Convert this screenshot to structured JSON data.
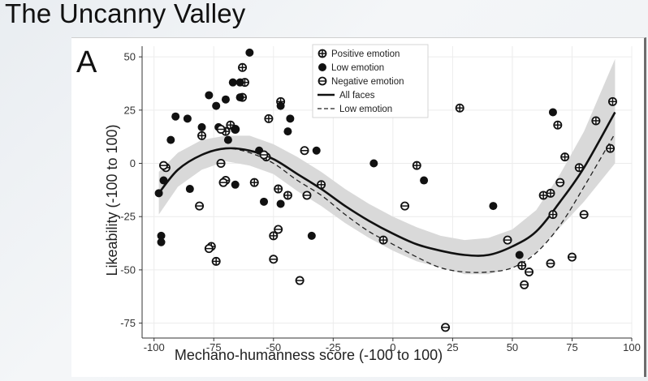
{
  "slide": {
    "title": "The Uncanny Valley"
  },
  "chart_data": {
    "type": "scatter",
    "panel_label": "A",
    "xlabel": "Mechano-humanness score (-100 to 100)",
    "ylabel": "Likeability (-100 to 100)",
    "xlim": [
      -105,
      100
    ],
    "ylim": [
      -82,
      55
    ],
    "x_ticks": [
      -100,
      -75,
      -50,
      -25,
      0,
      25,
      50,
      75,
      100
    ],
    "y_ticks": [
      -75,
      -50,
      -25,
      0,
      25,
      50
    ],
    "grid": true,
    "legend_position": "top-center",
    "legend": [
      {
        "label": "Positive emotion",
        "marker": "positive"
      },
      {
        "label": "Low emotion",
        "marker": "low"
      },
      {
        "label": "Negative emotion",
        "marker": "negative"
      },
      {
        "label": "All faces",
        "line": "solid"
      },
      {
        "label": "Low emotion",
        "line": "dashed"
      }
    ],
    "series": [
      {
        "marker": "positive",
        "points": [
          [
            -80,
            13
          ],
          [
            -70,
            15
          ],
          [
            -68,
            18
          ],
          [
            -66,
            16
          ],
          [
            -63,
            45
          ],
          [
            -62,
            38
          ],
          [
            -63,
            31
          ],
          [
            -58,
            -9
          ],
          [
            -52,
            21
          ],
          [
            -50,
            -34
          ],
          [
            -47,
            29
          ],
          [
            -53,
            3
          ],
          [
            -30,
            -10
          ],
          [
            -76,
            -39
          ],
          [
            -74,
            -46
          ],
          [
            -4,
            -36
          ],
          [
            10,
            -1
          ],
          [
            28,
            26
          ],
          [
            54,
            -48
          ],
          [
            63,
            -15
          ],
          [
            66,
            -14
          ],
          [
            67,
            -24
          ],
          [
            69,
            18
          ],
          [
            72,
            3
          ],
          [
            78,
            -2
          ],
          [
            85,
            20
          ],
          [
            92,
            29
          ],
          [
            91,
            7
          ],
          [
            -44,
            -15
          ],
          [
            -48,
            -12
          ]
        ]
      },
      {
        "marker": "low",
        "points": [
          [
            -97,
            -34
          ],
          [
            -97,
            -37
          ],
          [
            -98,
            -14
          ],
          [
            -96,
            -8
          ],
          [
            -93,
            11
          ],
          [
            -91,
            22
          ],
          [
            -86,
            21
          ],
          [
            -80,
            17
          ],
          [
            -77,
            32
          ],
          [
            -74,
            27
          ],
          [
            -73,
            17
          ],
          [
            -70,
            30
          ],
          [
            -67,
            38
          ],
          [
            -66,
            16
          ],
          [
            -64,
            38
          ],
          [
            -64,
            31
          ],
          [
            -69,
            11
          ],
          [
            -60,
            52
          ],
          [
            -56,
            6
          ],
          [
            -54,
            -18
          ],
          [
            -47,
            27
          ],
          [
            -44,
            15
          ],
          [
            -43,
            21
          ],
          [
            -47,
            -19
          ],
          [
            -32,
            6
          ],
          [
            -34,
            -34
          ],
          [
            -8,
            0
          ],
          [
            13,
            -8
          ],
          [
            42,
            -20
          ],
          [
            53,
            -43
          ],
          [
            67,
            24
          ],
          [
            -85,
            -12
          ],
          [
            -66,
            -10
          ]
        ]
      },
      {
        "marker": "negative",
        "points": [
          [
            -95,
            -2
          ],
          [
            -96,
            -1
          ],
          [
            -81,
            -20
          ],
          [
            -77,
            -40
          ],
          [
            -72,
            0
          ],
          [
            -72,
            16
          ],
          [
            -70,
            -8
          ],
          [
            -71,
            -9
          ],
          [
            -50,
            -45
          ],
          [
            -39,
            -55
          ],
          [
            -37,
            6
          ],
          [
            5,
            -20
          ],
          [
            22,
            -77
          ],
          [
            48,
            -36
          ],
          [
            55,
            -57
          ],
          [
            57,
            -51
          ],
          [
            66,
            -47
          ],
          [
            70,
            -9
          ],
          [
            75,
            -44
          ],
          [
            80,
            -24
          ],
          [
            -54,
            4
          ],
          [
            -48,
            -31
          ],
          [
            -36,
            -15
          ]
        ]
      }
    ],
    "fit_all_faces": [
      [
        -98,
        -14
      ],
      [
        -90,
        -3
      ],
      [
        -80,
        4
      ],
      [
        -70,
        7
      ],
      [
        -60,
        6
      ],
      [
        -50,
        2
      ],
      [
        -40,
        -5
      ],
      [
        -30,
        -12
      ],
      [
        -20,
        -20
      ],
      [
        -10,
        -27
      ],
      [
        0,
        -33
      ],
      [
        10,
        -38
      ],
      [
        20,
        -41
      ],
      [
        30,
        -43
      ],
      [
        40,
        -43
      ],
      [
        50,
        -39
      ],
      [
        60,
        -32
      ],
      [
        70,
        -18
      ],
      [
        80,
        -2
      ],
      [
        93,
        24
      ]
    ],
    "fit_low_emotion": [
      [
        -98,
        -14
      ],
      [
        -90,
        -3
      ],
      [
        -80,
        4
      ],
      [
        -70,
        7
      ],
      [
        -60,
        5
      ],
      [
        -50,
        0
      ],
      [
        -40,
        -8
      ],
      [
        -30,
        -15
      ],
      [
        -20,
        -24
      ],
      [
        -10,
        -32
      ],
      [
        0,
        -38
      ],
      [
        10,
        -44
      ],
      [
        20,
        -49
      ],
      [
        30,
        -51
      ],
      [
        40,
        -51
      ],
      [
        50,
        -49
      ],
      [
        60,
        -42
      ],
      [
        70,
        -29
      ],
      [
        80,
        -11
      ],
      [
        93,
        14
      ]
    ],
    "confidence_band": {
      "upper": [
        [
          -98,
          -4
        ],
        [
          -90,
          5
        ],
        [
          -80,
          11
        ],
        [
          -70,
          13
        ],
        [
          -60,
          13
        ],
        [
          -50,
          9
        ],
        [
          -40,
          3
        ],
        [
          -30,
          -4
        ],
        [
          -20,
          -12
        ],
        [
          -10,
          -19
        ],
        [
          0,
          -25
        ],
        [
          10,
          -30
        ],
        [
          20,
          -34
        ],
        [
          30,
          -36
        ],
        [
          40,
          -35
        ],
        [
          50,
          -31
        ],
        [
          60,
          -22
        ],
        [
          70,
          -5
        ],
        [
          80,
          15
        ],
        [
          93,
          49
        ]
      ],
      "lower": [
        [
          -98,
          -24
        ],
        [
          -90,
          -11
        ],
        [
          -80,
          -3
        ],
        [
          -70,
          1
        ],
        [
          -60,
          -1
        ],
        [
          -50,
          -5
        ],
        [
          -40,
          -13
        ],
        [
          -30,
          -20
        ],
        [
          -20,
          -28
        ],
        [
          -10,
          -35
        ],
        [
          0,
          -41
        ],
        [
          10,
          -46
        ],
        [
          20,
          -49
        ],
        [
          30,
          -52
        ],
        [
          40,
          -52
        ],
        [
          50,
          -49
        ],
        [
          60,
          -42
        ],
        [
          70,
          -30
        ],
        [
          80,
          -18
        ],
        [
          93,
          0
        ]
      ]
    }
  }
}
